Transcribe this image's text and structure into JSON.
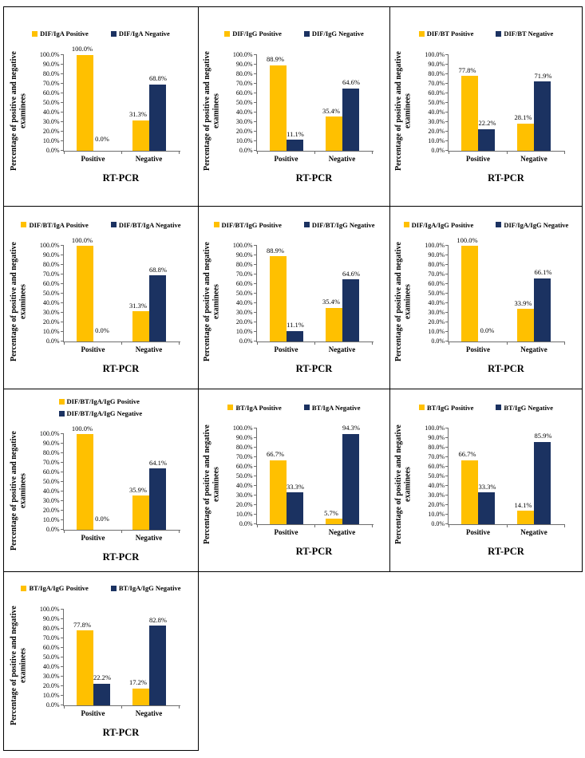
{
  "colors": {
    "positive_bar": "#FFC000",
    "negative_bar": "#1B3261",
    "axis": "#6e6e6e",
    "cell_border": "#000000",
    "text": "#000000"
  },
  "chart_data": [
    {
      "type": "bar",
      "test_name": "DIF/IgA",
      "categories": [
        "Positive",
        "Negative"
      ],
      "series": [
        {
          "name": "DIF/IgA Positive",
          "role": "positive",
          "values": [
            100.0,
            31.3
          ],
          "labels": [
            "100.0%",
            "31.3%"
          ]
        },
        {
          "name": "DIF/IgA Negative",
          "role": "negative",
          "values": [
            0.0,
            68.8
          ],
          "labels": [
            "0.0%",
            "68.8%"
          ]
        }
      ],
      "xlabel": "RT-PCR",
      "ylabel": "Percentage of positive and negative examinees",
      "ylim": [
        0,
        100
      ],
      "ytick_labels": [
        "0.0%",
        "10.0%",
        "20.0%",
        "30.0%",
        "40.0%",
        "50.0%",
        "60.0%",
        "70.0%",
        "80.0%",
        "90.0%",
        "100.0%"
      ],
      "legend_layout": "horizontal",
      "grid": false
    },
    {
      "type": "bar",
      "test_name": "DIF/IgG",
      "categories": [
        "Positive",
        "Negative"
      ],
      "series": [
        {
          "name": "DIF/IgG Positive",
          "role": "positive",
          "values": [
            88.9,
            35.4
          ],
          "labels": [
            "88.9%",
            "35.4%"
          ]
        },
        {
          "name": "DIF/IgG Negative",
          "role": "negative",
          "values": [
            11.1,
            64.6
          ],
          "labels": [
            "11.1%",
            "64.6%"
          ]
        }
      ],
      "xlabel": "RT-PCR",
      "ylabel": "Percentage of positive and negative examinees",
      "ylim": [
        0,
        100
      ],
      "ytick_labels": [
        "0.0%",
        "10.0%",
        "20.0%",
        "30.0%",
        "40.0%",
        "50.0%",
        "60.0%",
        "70.0%",
        "80.0%",
        "90.0%",
        "100.0%"
      ],
      "legend_layout": "horizontal",
      "grid": false
    },
    {
      "type": "bar",
      "test_name": "DIF/BT",
      "categories": [
        "Positive",
        "Negative"
      ],
      "series": [
        {
          "name": "DIF/BT Positive",
          "role": "positive",
          "values": [
            77.8,
            28.1
          ],
          "labels": [
            "77.8%",
            "28.1%"
          ]
        },
        {
          "name": "DIF/BT Negative",
          "role": "negative",
          "values": [
            22.2,
            71.9
          ],
          "labels": [
            "22.2%",
            "71.9%"
          ]
        }
      ],
      "xlabel": "RT-PCR",
      "ylabel": "Percentage of positive and negative examinees",
      "ylim": [
        0,
        100
      ],
      "ytick_labels": [
        "0.0%",
        "10.0%",
        "20.0%",
        "30.0%",
        "40.0%",
        "50.0%",
        "60.0%",
        "70.0%",
        "80.0%",
        "90.0%",
        "100.0%"
      ],
      "legend_layout": "horizontal",
      "grid": false
    },
    {
      "type": "bar",
      "test_name": "DIF/BT/IgA",
      "categories": [
        "Positive",
        "Negative"
      ],
      "series": [
        {
          "name": "DIF/BT/IgA Positive",
          "role": "positive",
          "values": [
            100.0,
            31.3
          ],
          "labels": [
            "100.0%",
            "31.3%"
          ]
        },
        {
          "name": "DIF/BT/IgA Negative",
          "role": "negative",
          "values": [
            0.0,
            68.8
          ],
          "labels": [
            "0.0%",
            "68.8%"
          ]
        }
      ],
      "xlabel": "RT-PCR",
      "ylabel": "Percentage of positive and negative examinees",
      "ylim": [
        0,
        100
      ],
      "ytick_labels": [
        "0.0%",
        "10.0%",
        "20.0%",
        "30.0%",
        "40.0%",
        "50.0%",
        "60.0%",
        "70.0%",
        "80.0%",
        "90.0%",
        "100.0%"
      ],
      "legend_layout": "horizontal",
      "grid": false
    },
    {
      "type": "bar",
      "test_name": "DIF/BT/IgG",
      "categories": [
        "Positive",
        "Negative"
      ],
      "series": [
        {
          "name": "DIF/BT/IgG Positive",
          "role": "positive",
          "values": [
            88.9,
            35.4
          ],
          "labels": [
            "88.9%",
            "35.4%"
          ]
        },
        {
          "name": "DIF/BT/IgG Negative",
          "role": "negative",
          "values": [
            11.1,
            64.6
          ],
          "labels": [
            "11.1%",
            "64.6%"
          ]
        }
      ],
      "xlabel": "RT-PCR",
      "ylabel": "Percentage of positive and negative examinees",
      "ylim": [
        0,
        100
      ],
      "ytick_labels": [
        "0.0%",
        "10.0%",
        "20.0%",
        "30.0%",
        "40.0%",
        "50.0%",
        "60.0%",
        "70.0%",
        "80.0%",
        "90.0%",
        "100.0%"
      ],
      "legend_layout": "horizontal",
      "grid": false
    },
    {
      "type": "bar",
      "test_name": "DIF/IgA/IgG",
      "categories": [
        "Positive",
        "Negative"
      ],
      "series": [
        {
          "name": "DIF/IgA/IgG Positive",
          "role": "positive",
          "values": [
            100.0,
            33.9
          ],
          "labels": [
            "100.0%",
            "33.9%"
          ]
        },
        {
          "name": "DIF/IgA/IgG Negative",
          "role": "negative",
          "values": [
            0.0,
            66.1
          ],
          "labels": [
            "0.0%",
            "66.1%"
          ]
        }
      ],
      "xlabel": "RT-PCR",
      "ylabel": "Percentage of positive and negative examinees",
      "ylim": [
        0,
        100
      ],
      "ytick_labels": [
        "0.0%",
        "10.0%",
        "20.0%",
        "30.0%",
        "40.0%",
        "50.0%",
        "60.0%",
        "70.0%",
        "80.0%",
        "90.0%",
        "100.0%"
      ],
      "legend_layout": "horizontal",
      "grid": false
    },
    {
      "type": "bar",
      "test_name": "DIF/BT/IgA/IgG",
      "categories": [
        "Positive",
        "Negative"
      ],
      "series": [
        {
          "name": "DIF/BT/IgA/IgG Positive",
          "role": "positive",
          "values": [
            100.0,
            35.9
          ],
          "labels": [
            "100.0%",
            "35.9%"
          ]
        },
        {
          "name": "DIF/BT/IgA/IgG Negative",
          "role": "negative",
          "values": [
            0.0,
            64.1
          ],
          "labels": [
            "0.0%",
            "64.1%"
          ]
        }
      ],
      "xlabel": "RT-PCR",
      "ylabel": "Percentage of positive and negative examinees",
      "ylim": [
        0,
        100
      ],
      "ytick_labels": [
        "0.0%",
        "10.0%",
        "20.0%",
        "30.0%",
        "40.0%",
        "50.0%",
        "60.0%",
        "70.0%",
        "80.0%",
        "90.0%",
        "100.0%"
      ],
      "legend_layout": "stacked",
      "grid": false
    },
    {
      "type": "bar",
      "test_name": "BT/IgA",
      "categories": [
        "Positive",
        "Negative"
      ],
      "series": [
        {
          "name": "BT/IgA Positive",
          "role": "positive",
          "values": [
            66.7,
            5.7
          ],
          "labels": [
            "66.7%",
            "5.7%"
          ]
        },
        {
          "name": "BT/IgA Negative",
          "role": "negative",
          "values": [
            33.3,
            94.3
          ],
          "labels": [
            "33.3%",
            "94.3%"
          ]
        }
      ],
      "xlabel": "RT-PCR",
      "ylabel": "Percentage of positive and negative examinees",
      "ylim": [
        0,
        100
      ],
      "ytick_labels": [
        "0.0%",
        "10.0%",
        "20.0%",
        "30.0%",
        "40.0%",
        "50.0%",
        "60.0%",
        "70.0%",
        "80.0%",
        "90.0%",
        "100.0%"
      ],
      "legend_layout": "horizontal",
      "grid": false
    },
    {
      "type": "bar",
      "test_name": "BT/IgG",
      "categories": [
        "Positive",
        "Negative"
      ],
      "series": [
        {
          "name": "BT/IgG Positive",
          "role": "positive",
          "values": [
            66.7,
            14.1
          ],
          "labels": [
            "66.7%",
            "14.1%"
          ]
        },
        {
          "name": "BT/IgG Negative",
          "role": "negative",
          "values": [
            33.3,
            85.9
          ],
          "labels": [
            "33.3%",
            "85.9%"
          ]
        }
      ],
      "xlabel": "RT-PCR",
      "ylabel": "Percentage of positive and negative examinees",
      "ylim": [
        0,
        100
      ],
      "ytick_labels": [
        "0.0%",
        "10.0%",
        "20.0%",
        "30.0%",
        "40.0%",
        "50.0%",
        "60.0%",
        "70.0%",
        "80.0%",
        "90.0%",
        "100.0%"
      ],
      "legend_layout": "horizontal",
      "grid": false
    },
    {
      "type": "bar",
      "test_name": "BT/IgA/IgG",
      "categories": [
        "Positive",
        "Negative"
      ],
      "series": [
        {
          "name": "BT/IgA/IgG Positive",
          "role": "positive",
          "values": [
            77.8,
            17.2
          ],
          "labels": [
            "77.8%",
            "17.2%"
          ]
        },
        {
          "name": "BT/IgA/IgG Negative",
          "role": "negative",
          "values": [
            22.2,
            82.8
          ],
          "labels": [
            "22.2%",
            "82.8%"
          ]
        }
      ],
      "xlabel": "RT-PCR",
      "ylabel": "Percentage of positive and negative examinees",
      "ylim": [
        0,
        100
      ],
      "ytick_labels": [
        "0.0%",
        "10.0%",
        "20.0%",
        "30.0%",
        "40.0%",
        "50.0%",
        "60.0%",
        "70.0%",
        "80.0%",
        "90.0%",
        "100.0%"
      ],
      "legend_layout": "horizontal",
      "grid": false
    }
  ]
}
